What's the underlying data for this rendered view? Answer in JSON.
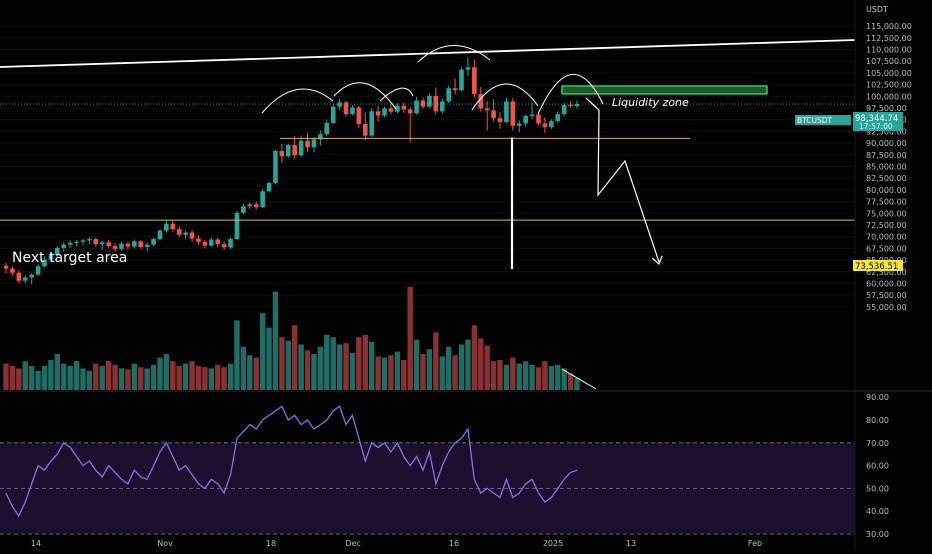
{
  "header": {
    "currency": "USDT"
  },
  "price_axis": {
    "labels": [
      "115,000.00",
      "112,500.00",
      "110,000.00",
      "107,500.00",
      "105,000.00",
      "102,500.00",
      "100,000.00",
      "97,500.00",
      "95,000.00",
      "92,500.00",
      "90,000.00",
      "87,500.00",
      "85,000.00",
      "82,500.00",
      "80,000.00",
      "77,500.00",
      "75,000.00",
      "72,500.00",
      "70,000.00",
      "67,500.00",
      "65,000.00",
      "62,500.00",
      "60,000.00",
      "57,500.00",
      "55,000.00"
    ],
    "values": [
      115000,
      112500,
      110000,
      107500,
      105000,
      102500,
      100000,
      97500,
      95000,
      92500,
      90000,
      87500,
      85000,
      82500,
      80000,
      77500,
      75000,
      72500,
      70000,
      67500,
      65000,
      62500,
      60000,
      57500,
      55000
    ]
  },
  "rsi_axis": {
    "labels": [
      "90.00",
      "80.00",
      "70.00",
      "60.00",
      "50.00",
      "40.00",
      "30.00"
    ],
    "values": [
      90,
      80,
      70,
      60,
      50,
      40,
      30
    ]
  },
  "time_axis": {
    "labels": [
      "14",
      "Nov",
      "18",
      "Dec",
      "16",
      "2025",
      "13",
      "Feb"
    ]
  },
  "badges": {
    "symbol": "BTCUSDT",
    "last_price": "98,344.74",
    "countdown": "17:57:00",
    "target_price": "73,536.51"
  },
  "annotations": {
    "next_target": "Next target area",
    "liquidity_zone": "Liquidity zone"
  },
  "colors": {
    "up": "#26a69a",
    "down": "#ef5350",
    "up_volume": "#1f6e65",
    "down_volume": "#8c3133",
    "rsi_line": "#8b6fe6",
    "rsi_band": "#1c0f2e",
    "neckline": "#d9b24c",
    "target_line": "#c9c06a",
    "liquidity": "#3ddc6a",
    "last_badge": "#26a69a",
    "target_badge": "#f7e534"
  },
  "chart_data": {
    "type": "candlestick",
    "symbol": "BTCUSDT",
    "quote": "USDT",
    "ylim": [
      52500,
      117500
    ],
    "candles": [
      {
        "o": 63800,
        "h": 64500,
        "l": 62200,
        "c": 63200
      },
      {
        "o": 63200,
        "h": 63600,
        "l": 61700,
        "c": 62300
      },
      {
        "o": 62300,
        "h": 62800,
        "l": 60100,
        "c": 60600
      },
      {
        "o": 60600,
        "h": 61700,
        "l": 60000,
        "c": 61300
      },
      {
        "o": 61300,
        "h": 62200,
        "l": 59900,
        "c": 61900
      },
      {
        "o": 61900,
        "h": 64100,
        "l": 61600,
        "c": 63700
      },
      {
        "o": 63700,
        "h": 65800,
        "l": 63400,
        "c": 65100
      },
      {
        "o": 65100,
        "h": 66400,
        "l": 64500,
        "c": 66100
      },
      {
        "o": 66100,
        "h": 68000,
        "l": 65600,
        "c": 67600
      },
      {
        "o": 67600,
        "h": 68800,
        "l": 66800,
        "c": 68300
      },
      {
        "o": 68300,
        "h": 69200,
        "l": 67600,
        "c": 68700
      },
      {
        "o": 68700,
        "h": 69300,
        "l": 68000,
        "c": 68900
      },
      {
        "o": 68900,
        "h": 69600,
        "l": 68100,
        "c": 69200
      },
      {
        "o": 69200,
        "h": 69900,
        "l": 68400,
        "c": 69500
      },
      {
        "o": 69500,
        "h": 69800,
        "l": 67800,
        "c": 68400
      },
      {
        "o": 68400,
        "h": 69100,
        "l": 67200,
        "c": 68800
      },
      {
        "o": 68800,
        "h": 69300,
        "l": 67600,
        "c": 68000
      },
      {
        "o": 68000,
        "h": 68600,
        "l": 66800,
        "c": 67400
      },
      {
        "o": 67400,
        "h": 68900,
        "l": 67000,
        "c": 68500
      },
      {
        "o": 68500,
        "h": 68900,
        "l": 67300,
        "c": 67900
      },
      {
        "o": 67900,
        "h": 69400,
        "l": 67500,
        "c": 69000
      },
      {
        "o": 69000,
        "h": 69200,
        "l": 67400,
        "c": 67800
      },
      {
        "o": 67800,
        "h": 68700,
        "l": 66900,
        "c": 68300
      },
      {
        "o": 68300,
        "h": 69800,
        "l": 68000,
        "c": 69500
      },
      {
        "o": 69500,
        "h": 71600,
        "l": 69200,
        "c": 71300
      },
      {
        "o": 71300,
        "h": 73500,
        "l": 70900,
        "c": 72800
      },
      {
        "o": 72800,
        "h": 73300,
        "l": 71100,
        "c": 71600
      },
      {
        "o": 71600,
        "h": 72200,
        "l": 69900,
        "c": 70400
      },
      {
        "o": 70400,
        "h": 71300,
        "l": 69400,
        "c": 70900
      },
      {
        "o": 70900,
        "h": 71400,
        "l": 69000,
        "c": 69600
      },
      {
        "o": 69600,
        "h": 70300,
        "l": 68300,
        "c": 68900
      },
      {
        "o": 68900,
        "h": 69300,
        "l": 67500,
        "c": 68100
      },
      {
        "o": 68100,
        "h": 69800,
        "l": 67800,
        "c": 69400
      },
      {
        "o": 69400,
        "h": 69800,
        "l": 67800,
        "c": 68400
      },
      {
        "o": 68400,
        "h": 69100,
        "l": 67200,
        "c": 67700
      },
      {
        "o": 67700,
        "h": 69800,
        "l": 67400,
        "c": 69500
      },
      {
        "o": 69500,
        "h": 75600,
        "l": 69300,
        "c": 75100
      },
      {
        "o": 75100,
        "h": 77000,
        "l": 74800,
        "c": 76500
      },
      {
        "o": 76500,
        "h": 77300,
        "l": 75900,
        "c": 76900
      },
      {
        "o": 76900,
        "h": 77500,
        "l": 75800,
        "c": 76300
      },
      {
        "o": 76300,
        "h": 80200,
        "l": 76100,
        "c": 79700
      },
      {
        "o": 79700,
        "h": 81800,
        "l": 79400,
        "c": 81500
      },
      {
        "o": 81500,
        "h": 88600,
        "l": 81300,
        "c": 88300
      },
      {
        "o": 88300,
        "h": 89800,
        "l": 85800,
        "c": 87200
      },
      {
        "o": 87200,
        "h": 89900,
        "l": 86900,
        "c": 89600
      },
      {
        "o": 89600,
        "h": 91500,
        "l": 86800,
        "c": 87400
      },
      {
        "o": 87400,
        "h": 91600,
        "l": 87100,
        "c": 90500
      },
      {
        "o": 90500,
        "h": 92200,
        "l": 88200,
        "c": 89100
      },
      {
        "o": 89100,
        "h": 91300,
        "l": 88000,
        "c": 90800
      },
      {
        "o": 90800,
        "h": 92700,
        "l": 89500,
        "c": 91900
      },
      {
        "o": 91900,
        "h": 95000,
        "l": 91600,
        "c": 94300
      },
      {
        "o": 94300,
        "h": 98200,
        "l": 94000,
        "c": 97800
      },
      {
        "o": 97800,
        "h": 99400,
        "l": 97000,
        "c": 98700
      },
      {
        "o": 98700,
        "h": 99000,
        "l": 95600,
        "c": 96200
      },
      {
        "o": 96200,
        "h": 98100,
        "l": 95900,
        "c": 97600
      },
      {
        "o": 97600,
        "h": 98000,
        "l": 93200,
        "c": 94100
      },
      {
        "o": 94100,
        "h": 96500,
        "l": 90600,
        "c": 91600
      },
      {
        "o": 91600,
        "h": 97400,
        "l": 91300,
        "c": 96800
      },
      {
        "o": 96800,
        "h": 97900,
        "l": 94600,
        "c": 95900
      },
      {
        "o": 95900,
        "h": 97800,
        "l": 95500,
        "c": 97400
      },
      {
        "o": 97400,
        "h": 98300,
        "l": 96200,
        "c": 96700
      },
      {
        "o": 96700,
        "h": 98500,
        "l": 96300,
        "c": 98000
      },
      {
        "o": 98000,
        "h": 98700,
        "l": 96500,
        "c": 97200
      },
      {
        "o": 97200,
        "h": 97600,
        "l": 90200,
        "c": 96400
      },
      {
        "o": 96400,
        "h": 99900,
        "l": 96100,
        "c": 99100
      },
      {
        "o": 99100,
        "h": 99700,
        "l": 97300,
        "c": 97800
      },
      {
        "o": 97800,
        "h": 100600,
        "l": 97500,
        "c": 100100
      },
      {
        "o": 100100,
        "h": 101900,
        "l": 96100,
        "c": 96800
      },
      {
        "o": 96800,
        "h": 99500,
        "l": 96300,
        "c": 98900
      },
      {
        "o": 98900,
        "h": 102300,
        "l": 98600,
        "c": 101700
      },
      {
        "o": 101700,
        "h": 103800,
        "l": 100400,
        "c": 101300
      },
      {
        "o": 101300,
        "h": 106200,
        "l": 101000,
        "c": 105700
      },
      {
        "o": 105700,
        "h": 108300,
        "l": 104300,
        "c": 106200
      },
      {
        "o": 106200,
        "h": 107900,
        "l": 99800,
        "c": 100500
      },
      {
        "o": 100500,
        "h": 102000,
        "l": 96700,
        "c": 97400
      },
      {
        "o": 97400,
        "h": 98900,
        "l": 92700,
        "c": 97000
      },
      {
        "o": 97000,
        "h": 99300,
        "l": 94600,
        "c": 95300
      },
      {
        "o": 95300,
        "h": 96600,
        "l": 93100,
        "c": 94500
      },
      {
        "o": 94500,
        "h": 99700,
        "l": 94200,
        "c": 98900
      },
      {
        "o": 98900,
        "h": 99600,
        "l": 92700,
        "c": 93700
      },
      {
        "o": 93700,
        "h": 94900,
        "l": 92300,
        "c": 94200
      },
      {
        "o": 94200,
        "h": 96100,
        "l": 93500,
        "c": 95800
      },
      {
        "o": 95800,
        "h": 98600,
        "l": 95100,
        "c": 96100
      },
      {
        "o": 96100,
        "h": 96500,
        "l": 93800,
        "c": 94200
      },
      {
        "o": 94200,
        "h": 95500,
        "l": 92100,
        "c": 93400
      },
      {
        "o": 93400,
        "h": 95100,
        "l": 93000,
        "c": 94700
      },
      {
        "o": 94700,
        "h": 96800,
        "l": 94300,
        "c": 96200
      },
      {
        "o": 96200,
        "h": 98600,
        "l": 95800,
        "c": 98200
      },
      {
        "o": 98200,
        "h": 98900,
        "l": 97600,
        "c": 97900
      },
      {
        "o": 97900,
        "h": 99100,
        "l": 97400,
        "c": 98344.74
      }
    ],
    "volume_relative": [
      0.22,
      0.2,
      0.18,
      0.24,
      0.2,
      0.16,
      0.2,
      0.25,
      0.3,
      0.22,
      0.2,
      0.24,
      0.18,
      0.16,
      0.22,
      0.2,
      0.24,
      0.21,
      0.18,
      0.17,
      0.22,
      0.19,
      0.18,
      0.21,
      0.27,
      0.3,
      0.24,
      0.2,
      0.22,
      0.24,
      0.2,
      0.19,
      0.18,
      0.21,
      0.19,
      0.22,
      0.58,
      0.36,
      0.29,
      0.27,
      0.64,
      0.52,
      0.82,
      0.44,
      0.41,
      0.54,
      0.38,
      0.33,
      0.3,
      0.36,
      0.46,
      0.44,
      0.38,
      0.39,
      0.31,
      0.44,
      0.46,
      0.4,
      0.28,
      0.27,
      0.29,
      0.32,
      0.25,
      0.86,
      0.42,
      0.3,
      0.34,
      0.48,
      0.28,
      0.36,
      0.29,
      0.38,
      0.42,
      0.54,
      0.43,
      0.37,
      0.24,
      0.25,
      0.21,
      0.27,
      0.22,
      0.24,
      0.21,
      0.19,
      0.24,
      0.2,
      0.21,
      0.18,
      0.14,
      0.1
    ],
    "rsi": {
      "ylim": [
        25,
        95
      ],
      "values": [
        48,
        42,
        38,
        44,
        52,
        60,
        58,
        62,
        65,
        70,
        68,
        64,
        60,
        62,
        58,
        55,
        60,
        57,
        54,
        52,
        58,
        55,
        54,
        60,
        66,
        70,
        64,
        58,
        60,
        56,
        52,
        50,
        54,
        52,
        48,
        56,
        72,
        75,
        78,
        76,
        80,
        82,
        84,
        86,
        80,
        82,
        78,
        80,
        76,
        78,
        80,
        84,
        86,
        78,
        82,
        72,
        62,
        70,
        68,
        70,
        66,
        70,
        64,
        60,
        64,
        58,
        66,
        52,
        60,
        66,
        70,
        72,
        76,
        54,
        48,
        50,
        48,
        46,
        54,
        46,
        48,
        52,
        54,
        48,
        44,
        46,
        50,
        54,
        57,
        58
      ],
      "bands": [
        30,
        50,
        70
      ]
    },
    "levels": {
      "last_price": 98344.74,
      "target": 73536.51,
      "neckline": 91000,
      "liquidity_zone": [
        100500,
        102200
      ]
    },
    "time_ticks": [
      "14",
      "Nov",
      "18",
      "Dec",
      "16",
      "2025",
      "13",
      "Feb"
    ]
  }
}
